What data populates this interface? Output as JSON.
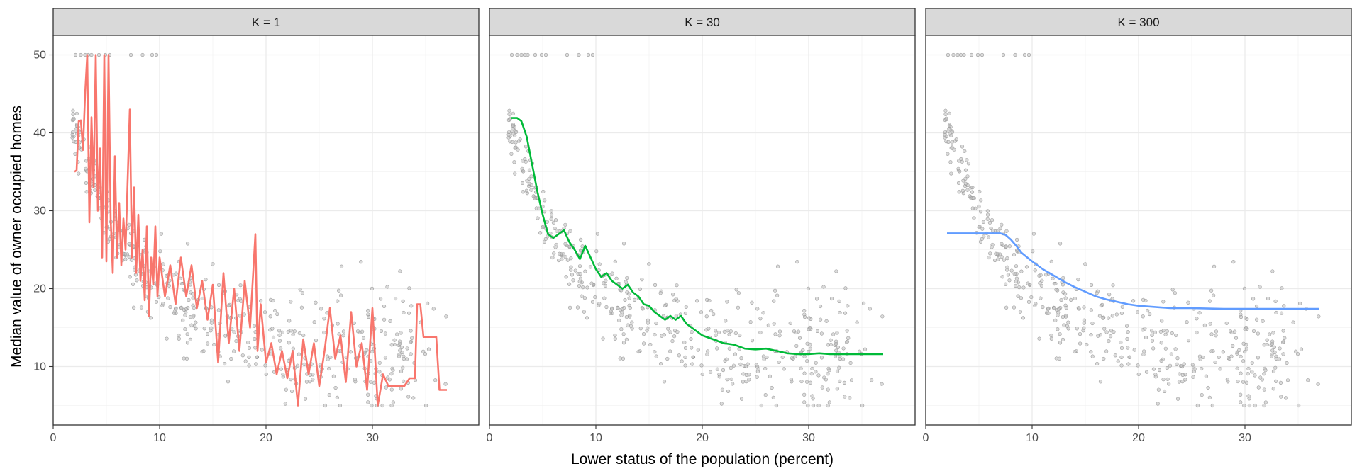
{
  "chart_data": {
    "type": "scatter",
    "xlabel": "Lower status of the population (percent)",
    "ylabel": "Median value of owner occupied homes",
    "xlim": [
      0,
      40
    ],
    "ylim": [
      2.5,
      52.5
    ],
    "x_ticks": [
      0,
      10,
      20,
      30
    ],
    "y_ticks": [
      10,
      20,
      30,
      40,
      50
    ],
    "grid": true,
    "facets": [
      {
        "strip": "K = 1",
        "line_color": "#F8766D",
        "fit": [
          [
            2.0,
            35.0
          ],
          [
            2.2,
            35.2
          ],
          [
            2.4,
            41.5
          ],
          [
            2.6,
            41.6
          ],
          [
            2.8,
            37.8
          ],
          [
            3.0,
            45.0
          ],
          [
            3.2,
            50.0
          ],
          [
            3.4,
            28.5
          ],
          [
            3.6,
            42.0
          ],
          [
            3.8,
            33.0
          ],
          [
            4.0,
            50.0
          ],
          [
            4.2,
            30.0
          ],
          [
            4.4,
            38.0
          ],
          [
            4.6,
            24.0
          ],
          [
            4.8,
            50.0
          ],
          [
            5.0,
            23.5
          ],
          [
            5.2,
            50.0
          ],
          [
            5.4,
            29.0
          ],
          [
            5.6,
            22.0
          ],
          [
            5.8,
            37.0
          ],
          [
            6.0,
            24.0
          ],
          [
            6.2,
            31.0
          ],
          [
            6.4,
            23.0
          ],
          [
            6.6,
            29.0
          ],
          [
            6.8,
            25.0
          ],
          [
            7.0,
            34.0
          ],
          [
            7.2,
            43.0
          ],
          [
            7.4,
            24.0
          ],
          [
            7.6,
            33.0
          ],
          [
            7.8,
            22.0
          ],
          [
            8.0,
            29.5
          ],
          [
            8.2,
            21.0
          ],
          [
            8.4,
            25.0
          ],
          [
            8.6,
            18.5
          ],
          [
            8.8,
            28.0
          ],
          [
            9.0,
            16.5
          ],
          [
            9.2,
            24.0
          ],
          [
            9.4,
            20.5
          ],
          [
            9.6,
            28.0
          ],
          [
            9.8,
            19.0
          ],
          [
            10.0,
            24.0
          ],
          [
            10.5,
            19.0
          ],
          [
            11.0,
            23.0
          ],
          [
            11.5,
            18.0
          ],
          [
            12.0,
            24.0
          ],
          [
            12.5,
            19.0
          ],
          [
            13.0,
            23.0
          ],
          [
            13.5,
            17.5
          ],
          [
            14.0,
            21.0
          ],
          [
            14.5,
            16.0
          ],
          [
            15.0,
            20.5
          ],
          [
            15.5,
            10.5
          ],
          [
            16.0,
            22.0
          ],
          [
            16.5,
            13.0
          ],
          [
            17.0,
            20.0
          ],
          [
            17.5,
            12.0
          ],
          [
            18.0,
            21.0
          ],
          [
            18.5,
            15.0
          ],
          [
            19.0,
            27.0
          ],
          [
            19.2,
            12.0
          ],
          [
            19.5,
            18.0
          ],
          [
            20.0,
            10.5
          ],
          [
            20.5,
            13.0
          ],
          [
            21.0,
            9.0
          ],
          [
            21.5,
            12.0
          ],
          [
            22.0,
            8.5
          ],
          [
            22.5,
            12.0
          ],
          [
            23.0,
            5.0
          ],
          [
            23.5,
            13.5
          ],
          [
            24.0,
            9.0
          ],
          [
            24.5,
            13.0
          ],
          [
            25.0,
            7.5
          ],
          [
            25.5,
            12.0
          ],
          [
            26.0,
            17.5
          ],
          [
            26.5,
            11.0
          ],
          [
            27.0,
            14.0
          ],
          [
            27.5,
            8.0
          ],
          [
            28.0,
            17.0
          ],
          [
            28.5,
            10.0
          ],
          [
            29.0,
            13.0
          ],
          [
            29.5,
            7.0
          ],
          [
            30.0,
            17.5
          ],
          [
            30.5,
            5.0
          ],
          [
            31.0,
            9.0
          ],
          [
            31.5,
            7.5
          ],
          [
            32.0,
            7.5
          ],
          [
            33.0,
            7.5
          ],
          [
            33.5,
            8.5
          ],
          [
            34.0,
            8.5
          ],
          [
            34.2,
            18.0
          ],
          [
            34.5,
            18.0
          ],
          [
            34.8,
            13.8
          ],
          [
            36.0,
            13.8
          ],
          [
            36.3,
            7.0
          ],
          [
            37.0,
            7.0
          ]
        ]
      },
      {
        "strip": "K = 30",
        "line_color": "#00BA38",
        "fit": [
          [
            2.0,
            41.9
          ],
          [
            2.6,
            41.9
          ],
          [
            3.0,
            41.5
          ],
          [
            3.5,
            39.5
          ],
          [
            4.0,
            36.0
          ],
          [
            4.5,
            32.5
          ],
          [
            5.0,
            29.5
          ],
          [
            5.5,
            27.0
          ],
          [
            6.0,
            26.5
          ],
          [
            6.5,
            27.0
          ],
          [
            7.0,
            27.5
          ],
          [
            7.5,
            26.0
          ],
          [
            8.0,
            25.0
          ],
          [
            8.5,
            23.8
          ],
          [
            9.0,
            25.5
          ],
          [
            9.5,
            24.0
          ],
          [
            10.0,
            22.5
          ],
          [
            10.5,
            21.5
          ],
          [
            11.0,
            22.0
          ],
          [
            11.5,
            21.0
          ],
          [
            12.0,
            20.5
          ],
          [
            12.5,
            20.0
          ],
          [
            13.0,
            20.5
          ],
          [
            13.5,
            19.5
          ],
          [
            14.0,
            19.0
          ],
          [
            14.5,
            18.0
          ],
          [
            15.0,
            17.8
          ],
          [
            15.5,
            17.0
          ],
          [
            16.0,
            16.5
          ],
          [
            16.5,
            16.0
          ],
          [
            17.0,
            16.5
          ],
          [
            17.5,
            16.0
          ],
          [
            18.0,
            16.5
          ],
          [
            18.5,
            15.5
          ],
          [
            19.0,
            15.0
          ],
          [
            19.5,
            14.5
          ],
          [
            20.0,
            14.0
          ],
          [
            21.0,
            13.5
          ],
          [
            22.0,
            13.0
          ],
          [
            23.0,
            12.8
          ],
          [
            24.0,
            12.3
          ],
          [
            25.0,
            12.2
          ],
          [
            26.0,
            12.3
          ],
          [
            27.0,
            12.0
          ],
          [
            28.0,
            11.7
          ],
          [
            29.0,
            11.6
          ],
          [
            30.0,
            11.6
          ],
          [
            31.0,
            11.7
          ],
          [
            32.0,
            11.6
          ],
          [
            34.0,
            11.6
          ],
          [
            37.0,
            11.6
          ]
        ]
      },
      {
        "strip": "K = 300",
        "line_color": "#619CFF",
        "fit": [
          [
            2.0,
            27.1
          ],
          [
            4.0,
            27.1
          ],
          [
            6.0,
            27.1
          ],
          [
            7.0,
            27.1
          ],
          [
            7.5,
            26.9
          ],
          [
            8.0,
            26.3
          ],
          [
            8.5,
            25.5
          ],
          [
            9.0,
            24.6
          ],
          [
            10.0,
            23.5
          ],
          [
            11.0,
            22.5
          ],
          [
            12.0,
            21.7
          ],
          [
            13.0,
            20.9
          ],
          [
            14.0,
            20.2
          ],
          [
            15.0,
            19.6
          ],
          [
            16.0,
            19.0
          ],
          [
            17.0,
            18.6
          ],
          [
            18.0,
            18.3
          ],
          [
            19.0,
            18.0
          ],
          [
            20.0,
            17.8
          ],
          [
            21.0,
            17.7
          ],
          [
            22.0,
            17.6
          ],
          [
            23.0,
            17.5
          ],
          [
            25.0,
            17.5
          ],
          [
            28.0,
            17.4
          ],
          [
            32.0,
            17.4
          ],
          [
            35.0,
            17.4
          ],
          [
            37.0,
            17.4
          ]
        ]
      }
    ]
  }
}
